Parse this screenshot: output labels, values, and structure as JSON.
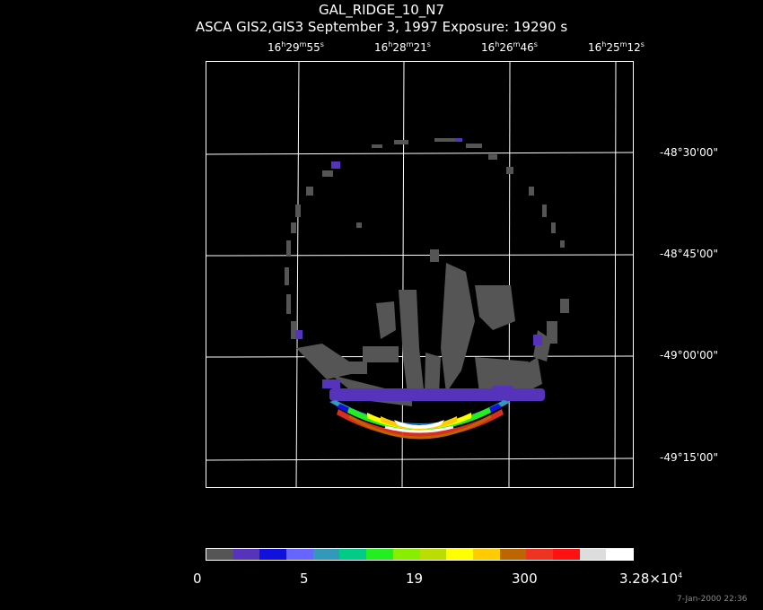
{
  "header": {
    "title": "GAL_RIDGE_10_N7",
    "subtitle": "ASCA GIS2,GIS3 September 3, 1997 Exposure: 19290 s"
  },
  "ra_ticks": [
    {
      "h": "16",
      "m": "29",
      "s": "55"
    },
    {
      "h": "16",
      "m": "28",
      "s": "21"
    },
    {
      "h": "16",
      "m": "26",
      "s": "46"
    },
    {
      "h": "16",
      "m": "25",
      "s": "12"
    }
  ],
  "dec_ticks": [
    "-48°30'00\"",
    "-48°45'00\"",
    "-49°00'00\"",
    "-49°15'00\""
  ],
  "colorbar": {
    "colors": [
      "#555555",
      "#5533bb",
      "#1111dd",
      "#6666ff",
      "#3399bb",
      "#00cc88",
      "#22ee22",
      "#88ee00",
      "#bbdd00",
      "#ffff00",
      "#ffcc00",
      "#bb6600",
      "#ee3322",
      "#ff1111",
      "#dddddd",
      "#ffffff"
    ],
    "labels": [
      "0",
      "5",
      "19",
      "300"
    ],
    "max_label": "3.28×10",
    "max_exp": "4"
  },
  "footer": "7-Jan-2000 22:36"
}
